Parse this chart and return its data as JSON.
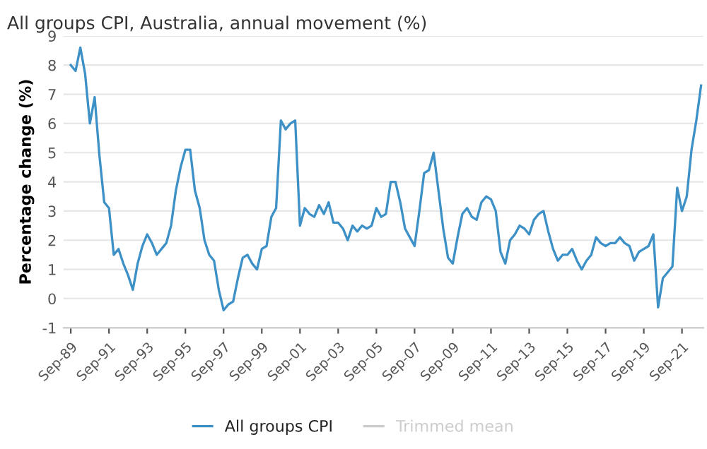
{
  "chart_data": {
    "type": "line",
    "title": "All groups CPI, Australia, annual movement (%)",
    "ylabel": "Percentage change (%)",
    "categories": [
      "Sep-89",
      null,
      null,
      null,
      null,
      null,
      null,
      null,
      "Sep-91",
      null,
      null,
      null,
      null,
      null,
      null,
      null,
      "Sep-93",
      null,
      null,
      null,
      null,
      null,
      null,
      null,
      "Sep-95",
      null,
      null,
      null,
      null,
      null,
      null,
      null,
      "Sep-97",
      null,
      null,
      null,
      null,
      null,
      null,
      null,
      "Sep-99",
      null,
      null,
      null,
      null,
      null,
      null,
      null,
      "Sep-01",
      null,
      null,
      null,
      null,
      null,
      null,
      null,
      "Sep-03",
      null,
      null,
      null,
      null,
      null,
      null,
      null,
      "Sep-05",
      null,
      null,
      null,
      null,
      null,
      null,
      null,
      "Sep-07",
      null,
      null,
      null,
      null,
      null,
      null,
      null,
      "Sep-09",
      null,
      null,
      null,
      null,
      null,
      null,
      null,
      "Sep-11",
      null,
      null,
      null,
      null,
      null,
      null,
      null,
      "Sep-13",
      null,
      null,
      null,
      null,
      null,
      null,
      null,
      "Sep-15",
      null,
      null,
      null,
      null,
      null,
      null,
      null,
      "Sep-17",
      null,
      null,
      null,
      null,
      null,
      null,
      null,
      "Sep-19",
      null,
      null,
      null,
      null,
      null,
      null,
      null,
      "Sep-21",
      null,
      null,
      null,
      null
    ],
    "series": [
      {
        "name": "All groups CPI",
        "color": "#3d91c6",
        "values": [
          8.0,
          7.8,
          8.6,
          7.7,
          6.0,
          6.9,
          4.9,
          3.3,
          3.1,
          1.5,
          1.7,
          1.2,
          0.8,
          0.3,
          1.2,
          1.8,
          2.2,
          1.9,
          1.5,
          1.7,
          1.9,
          2.5,
          3.7,
          4.5,
          5.1,
          5.1,
          3.7,
          3.1,
          2.0,
          1.5,
          1.3,
          0.3,
          -0.4,
          -0.2,
          -0.1,
          0.7,
          1.4,
          1.5,
          1.2,
          1.0,
          1.7,
          1.8,
          2.8,
          3.1,
          6.1,
          5.8,
          6.0,
          6.1,
          2.5,
          3.1,
          2.9,
          2.8,
          3.2,
          2.9,
          3.3,
          2.6,
          2.6,
          2.4,
          2.0,
          2.5,
          2.3,
          2.5,
          2.4,
          2.5,
          3.1,
          2.8,
          2.9,
          4.0,
          4.0,
          3.3,
          2.4,
          2.1,
          1.8,
          3.0,
          4.3,
          4.4,
          5.0,
          3.7,
          2.4,
          1.4,
          1.2,
          2.1,
          2.9,
          3.1,
          2.8,
          2.7,
          3.3,
          3.5,
          3.4,
          3.0,
          1.6,
          1.2,
          2.0,
          2.2,
          2.5,
          2.4,
          2.2,
          2.7,
          2.9,
          3.0,
          2.3,
          1.7,
          1.3,
          1.5,
          1.5,
          1.7,
          1.3,
          1.0,
          1.3,
          1.5,
          2.1,
          1.9,
          1.8,
          1.9,
          1.9,
          2.1,
          1.9,
          1.8,
          1.3,
          1.6,
          1.7,
          1.8,
          2.2,
          -0.3,
          0.7,
          0.9,
          1.1,
          3.8,
          3.0,
          3.5,
          5.1,
          6.1,
          7.3
        ]
      },
      {
        "name": "Trimmed mean",
        "color": "#cccccc",
        "values": [
          null,
          null,
          null,
          null,
          null,
          null,
          null,
          null,
          null,
          null,
          null,
          null,
          null,
          null,
          null,
          null,
          null,
          null,
          null,
          null,
          null,
          null,
          null,
          null,
          null,
          null,
          null,
          null,
          null,
          null,
          null,
          null,
          null,
          null,
          null,
          null,
          null,
          null,
          null,
          null,
          null,
          null,
          null,
          null,
          null,
          null,
          null,
          null,
          null,
          null,
          null,
          null,
          null,
          null,
          null,
          null,
          null,
          null,
          null,
          null,
          null,
          null,
          null,
          null,
          null,
          null,
          null,
          null,
          null,
          null,
          null,
          null,
          null,
          null,
          null,
          null,
          null,
          null,
          null,
          null,
          null,
          null,
          null,
          null,
          null,
          null,
          null,
          null,
          null,
          null,
          null,
          null,
          null,
          null,
          null,
          null,
          null,
          null,
          null,
          null,
          null,
          null,
          null,
          null,
          null,
          null,
          null,
          null,
          null,
          null,
          null,
          null,
          null,
          null,
          null,
          null,
          null,
          null,
          null,
          null,
          null,
          null,
          null,
          null,
          null,
          null,
          null,
          null,
          null,
          null,
          null,
          null,
          null
        ]
      }
    ],
    "ylim": [
      -1,
      9
    ],
    "yticks": [
      -1,
      0,
      1,
      2,
      3,
      4,
      5,
      6,
      7,
      8,
      9
    ],
    "grid": "y",
    "legend": "bottom",
    "marker": "none",
    "line_style": "solid"
  }
}
